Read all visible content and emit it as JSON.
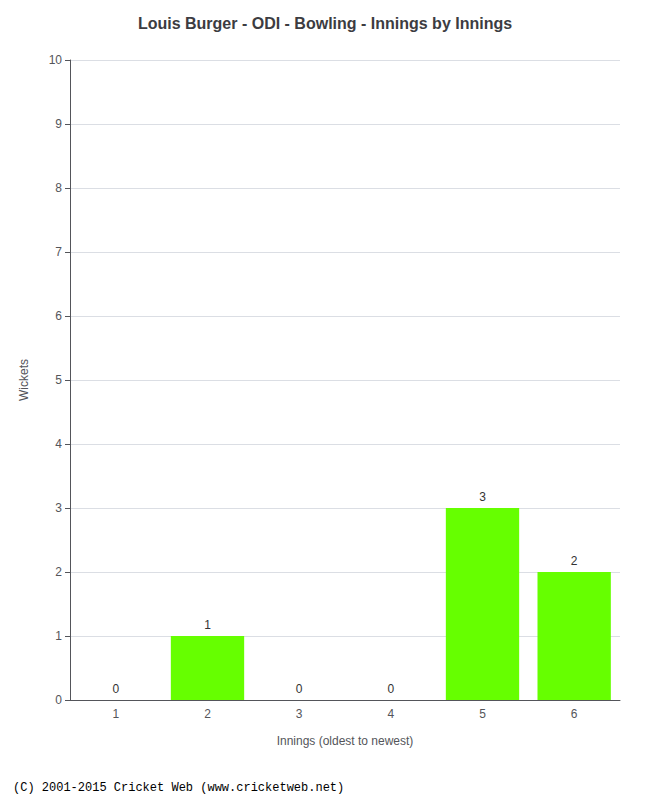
{
  "chart_data": {
    "type": "bar",
    "title": "Louis Burger - ODI - Bowling - Innings by Innings",
    "xlabel": "Innings (oldest to newest)",
    "ylabel": "Wickets",
    "categories": [
      "1",
      "2",
      "3",
      "4",
      "5",
      "6"
    ],
    "values": [
      0,
      1,
      0,
      0,
      3,
      2
    ],
    "color": "#66ff00",
    "ylim": [
      0,
      10
    ],
    "yticks": [
      0,
      1,
      2,
      3,
      4,
      5,
      6,
      7,
      8,
      9,
      10
    ],
    "grid": true,
    "data_labels": true,
    "annotations": [
      "(C) 2001-2015 Cricket Web (www.cricketweb.net)"
    ]
  }
}
